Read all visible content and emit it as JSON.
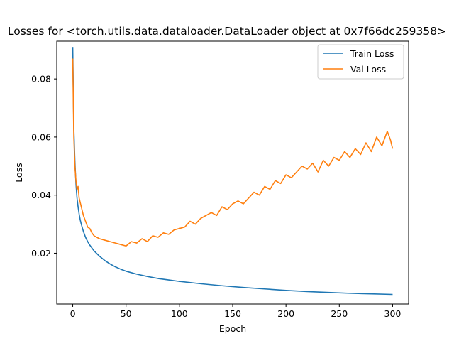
{
  "chart_data": {
    "type": "line",
    "title": "Losses for <torch.utils.data.dataloader.DataLoader object at 0x7f66dc259358>",
    "xlabel": "Epoch",
    "ylabel": "Loss",
    "xlim": [
      -15,
      315
    ],
    "ylim": [
      0.0025,
      0.093
    ],
    "xticks": [
      0,
      50,
      100,
      150,
      200,
      250,
      300
    ],
    "yticks": [
      0.02,
      0.04,
      0.06,
      0.08
    ],
    "ytick_labels": [
      "0.02",
      "0.04",
      "0.06",
      "0.08"
    ],
    "grid": false,
    "legend_position": "top-right",
    "series": [
      {
        "name": "Train Loss",
        "color": "#1f77b4",
        "x": [
          0,
          1,
          2,
          3,
          4,
          5,
          6,
          7,
          8,
          10,
          12,
          14,
          16,
          18,
          20,
          25,
          30,
          35,
          40,
          45,
          50,
          60,
          70,
          80,
          90,
          100,
          120,
          140,
          160,
          180,
          200,
          220,
          240,
          260,
          280,
          300
        ],
        "y": [
          0.091,
          0.063,
          0.052,
          0.044,
          0.039,
          0.036,
          0.0335,
          0.0315,
          0.03,
          0.0275,
          0.0255,
          0.024,
          0.0228,
          0.0218,
          0.0208,
          0.019,
          0.0175,
          0.0163,
          0.0153,
          0.0145,
          0.0138,
          0.0128,
          0.012,
          0.0113,
          0.0108,
          0.0103,
          0.0095,
          0.0088,
          0.0082,
          0.0077,
          0.0072,
          0.0068,
          0.0065,
          0.0062,
          0.006,
          0.0058
        ]
      },
      {
        "name": "Val Loss",
        "color": "#ff7f0e",
        "x": [
          0,
          1,
          2,
          3,
          4,
          5,
          6,
          8,
          10,
          12,
          14,
          16,
          18,
          20,
          25,
          30,
          35,
          40,
          45,
          50,
          55,
          60,
          65,
          70,
          75,
          80,
          85,
          90,
          95,
          100,
          105,
          110,
          115,
          120,
          125,
          130,
          135,
          140,
          145,
          150,
          155,
          160,
          165,
          170,
          175,
          180,
          185,
          190,
          195,
          200,
          205,
          210,
          215,
          220,
          225,
          230,
          235,
          240,
          245,
          250,
          255,
          260,
          265,
          270,
          275,
          280,
          285,
          290,
          295,
          298,
          300
        ],
        "y": [
          0.087,
          0.06,
          0.05,
          0.045,
          0.042,
          0.043,
          0.039,
          0.036,
          0.033,
          0.031,
          0.029,
          0.0285,
          0.027,
          0.026,
          0.025,
          0.0245,
          0.024,
          0.0235,
          0.023,
          0.0225,
          0.024,
          0.0235,
          0.025,
          0.024,
          0.026,
          0.0255,
          0.027,
          0.0265,
          0.028,
          0.0285,
          0.029,
          0.031,
          0.03,
          0.032,
          0.033,
          0.034,
          0.033,
          0.036,
          0.035,
          0.037,
          0.038,
          0.037,
          0.039,
          0.041,
          0.04,
          0.043,
          0.042,
          0.045,
          0.044,
          0.047,
          0.046,
          0.048,
          0.05,
          0.049,
          0.051,
          0.048,
          0.052,
          0.05,
          0.053,
          0.052,
          0.055,
          0.053,
          0.056,
          0.054,
          0.058,
          0.055,
          0.06,
          0.057,
          0.062,
          0.059,
          0.056
        ]
      }
    ]
  }
}
